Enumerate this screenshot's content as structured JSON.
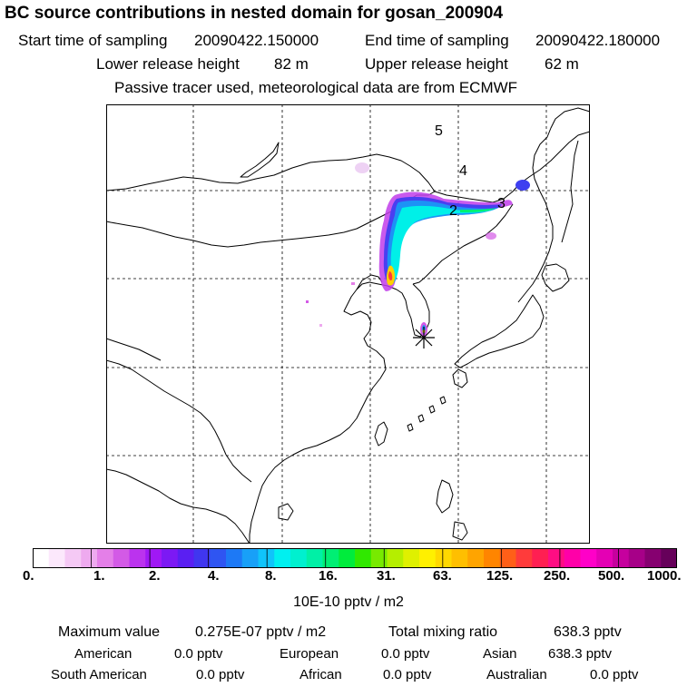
{
  "header": {
    "title": "BC  source contributions in nested domain for gosan_200904",
    "start_label": "Start time of sampling",
    "start_value": "20090422.150000",
    "end_label": "End time of sampling",
    "end_value": "20090422.180000",
    "lower_label": "Lower release height",
    "lower_value": "82 m",
    "upper_label": "Upper release height",
    "upper_value": "62 m",
    "note": "Passive tracer used, meteorological data are from ECMWF"
  },
  "map": {
    "trajectory_labels": [
      "5",
      "4",
      "3",
      "2"
    ],
    "receptor_marker": "star"
  },
  "colorbar": {
    "ticks": [
      "0.",
      "1.",
      "2.",
      "4.",
      "8.",
      "16.",
      "31.",
      "63.",
      "125.",
      "250.",
      "500.",
      "1000."
    ],
    "units": "10E-10 pptv / m2",
    "colors": [
      "#ffffff",
      "#fce8fc",
      "#f5c9f5",
      "#eeaaef",
      "#e47fe8",
      "#d35ae6",
      "#bb33ee",
      "#a018f5",
      "#7c19f4",
      "#5a1ff2",
      "#4036f0",
      "#2f55f2",
      "#1d79f6",
      "#18a0f8",
      "#10c4fa",
      "#00f0f0",
      "#00f0cf",
      "#00f0a6",
      "#00ef74",
      "#00ec3c",
      "#30e800",
      "#78ea00",
      "#b5ee00",
      "#dff000",
      "#fff000",
      "#ffd800",
      "#ffbf00",
      "#ffa400",
      "#ff8500",
      "#ff5f18",
      "#ff3b3b",
      "#ff1f52",
      "#ff0d83",
      "#ff00a8",
      "#ff00c8",
      "#e400b4",
      "#c6009e",
      "#a70088",
      "#860070",
      "#66005a"
    ]
  },
  "summary": {
    "max_label": "Maximum value",
    "max_value": "0.275E-07 pptv / m2",
    "total_label": "Total mixing ratio",
    "total_value": "638.3 pptv",
    "regions": [
      {
        "name": "American",
        "value": "0.0 pptv"
      },
      {
        "name": "European",
        "value": "0.0 pptv"
      },
      {
        "name": "Asian",
        "value": "638.3 pptv"
      },
      {
        "name": "South American",
        "value": "0.0 pptv"
      },
      {
        "name": "African",
        "value": "0.0 pptv"
      },
      {
        "name": "Australian",
        "value": "0.0 pptv"
      }
    ]
  }
}
